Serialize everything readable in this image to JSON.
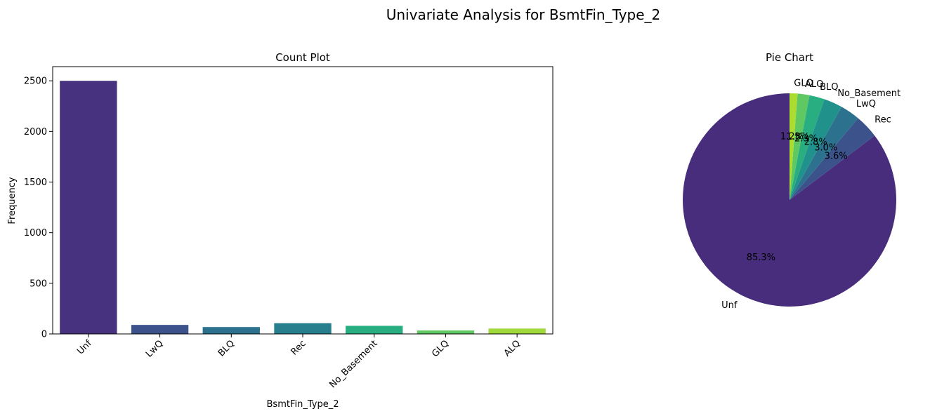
{
  "figure": {
    "title": "Univariate Analysis for BsmtFin_Type_2"
  },
  "chart_data": [
    {
      "type": "bar",
      "title": "Count Plot",
      "xlabel": "BsmtFin_Type_2",
      "ylabel": "Frequency",
      "categories": [
        "Unf",
        "LwQ",
        "BLQ",
        "Rec",
        "No_Basement",
        "GLQ",
        "ALQ"
      ],
      "values": [
        2500,
        89,
        68,
        106,
        80,
        34,
        53
      ],
      "colors": [
        "#46327e",
        "#3b528b",
        "#2c728e",
        "#277f8e",
        "#28ae80",
        "#5ec962",
        "#9fda3a"
      ],
      "ylim": [
        0,
        2640
      ],
      "yticks": [
        0,
        500,
        1000,
        1500,
        2000,
        2500
      ],
      "xtick_rotation": 45,
      "grid": false
    },
    {
      "type": "pie",
      "title": "Pie Chart",
      "labels": [
        "Unf",
        "Rec",
        "LwQ",
        "No_Basement",
        "BLQ",
        "ALQ",
        "GLQ"
      ],
      "values": [
        85.3,
        3.6,
        3.0,
        2.8,
        2.3,
        1.8,
        1.2
      ],
      "autopct": [
        "85.3%",
        "3.6%",
        "3.0%",
        "2.8%",
        "2.3%",
        "1.8%",
        "1.2%"
      ],
      "colors": [
        "#472d7b",
        "#3b528b",
        "#2c728e",
        "#21918c",
        "#28ae80",
        "#5ec962",
        "#addc30"
      ],
      "startangle": 90,
      "direction": "counterclockwise"
    }
  ]
}
